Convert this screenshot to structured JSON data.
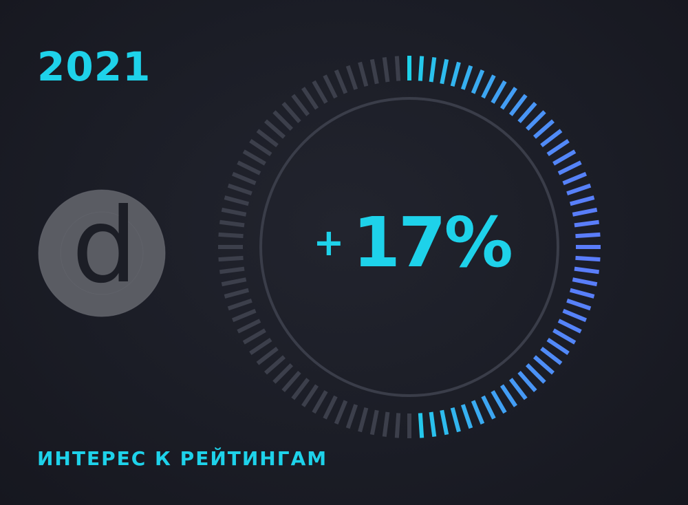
{
  "header": {
    "year": "2021"
  },
  "logo": {
    "letter": "d"
  },
  "chart_data": {
    "type": "gauge",
    "value": 17,
    "value_label": "17%",
    "sign": "+",
    "caption": "ИНТЕРЕС К РЕЙТИНГАМ",
    "total_ticks": 96,
    "active_ticks": 48
  },
  "colors": {
    "accent": "#1ed2ea",
    "accent_blue": "#5a7dfa",
    "tick_inactive": "#3c3f4b",
    "ring": "#3a3d49",
    "logo_bg": "#5a5c63",
    "logo_letter": "#1c1e26"
  }
}
